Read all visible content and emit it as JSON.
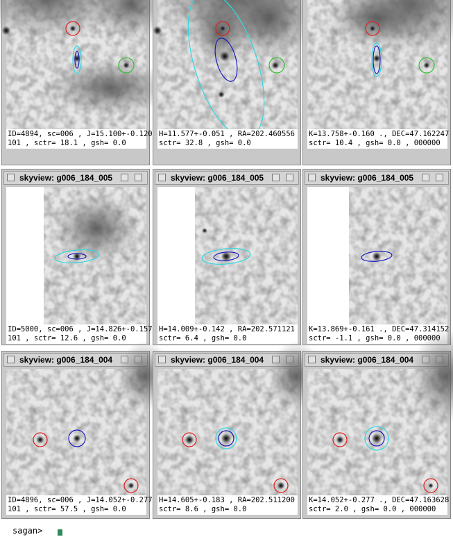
{
  "windows": [
    {
      "caption": [
        "ID=4894, sc=006 , J=15.100+-0.120",
        "101 , sctr= 18.1 , gsh= 0.0"
      ]
    },
    {
      "caption": [
        "H=11.577+-0.051 , RA=202.460556",
        "sctr= 32.8 , gsh= 0.0"
      ]
    },
    {
      "caption": [
        "K=13.758+-0.160 ., DEC=47.162247",
        "sctr= 10.4 , gsh= 0.0 , 000000"
      ]
    },
    {
      "title": "skyview: g006_184_005",
      "caption": [
        "ID=5000, sc=006 , J=14.826+-0.157",
        "101 , sctr= 12.6 , gsh= 0.0"
      ]
    },
    {
      "title": "skyview: g006_184_005",
      "caption": [
        "H=14.009+-0.142 , RA=202.571121",
        "sctr= 6.4 , gsh= 0.0"
      ]
    },
    {
      "title": "skyview: g006_184_005",
      "caption": [
        "K=13.869+-0.161 ., DEC=47.314152",
        "sctr= -1.1 , gsh= 0.0 , 000000"
      ]
    },
    {
      "title": "skyview: g006_184_004",
      "caption": [
        "ID=4896, sc=006 , J=14.052+-0.277",
        "101 , sctr= 57.5 , gsh= 0.0"
      ]
    },
    {
      "title": "skyview: g006_184_004",
      "caption": [
        "H=14.605+-0.183 , RA=202.511200",
        "sctr= 8.6 , gsh= 0.0"
      ]
    },
    {
      "title": "skyview: g006_184_004",
      "caption": [
        "K=14.052+-0.277 ., DEC=47.163628",
        "sctr= 2.0 , gsh= 0.0 , 000000"
      ]
    }
  ],
  "terminal": {
    "prompt": "sagan>"
  }
}
